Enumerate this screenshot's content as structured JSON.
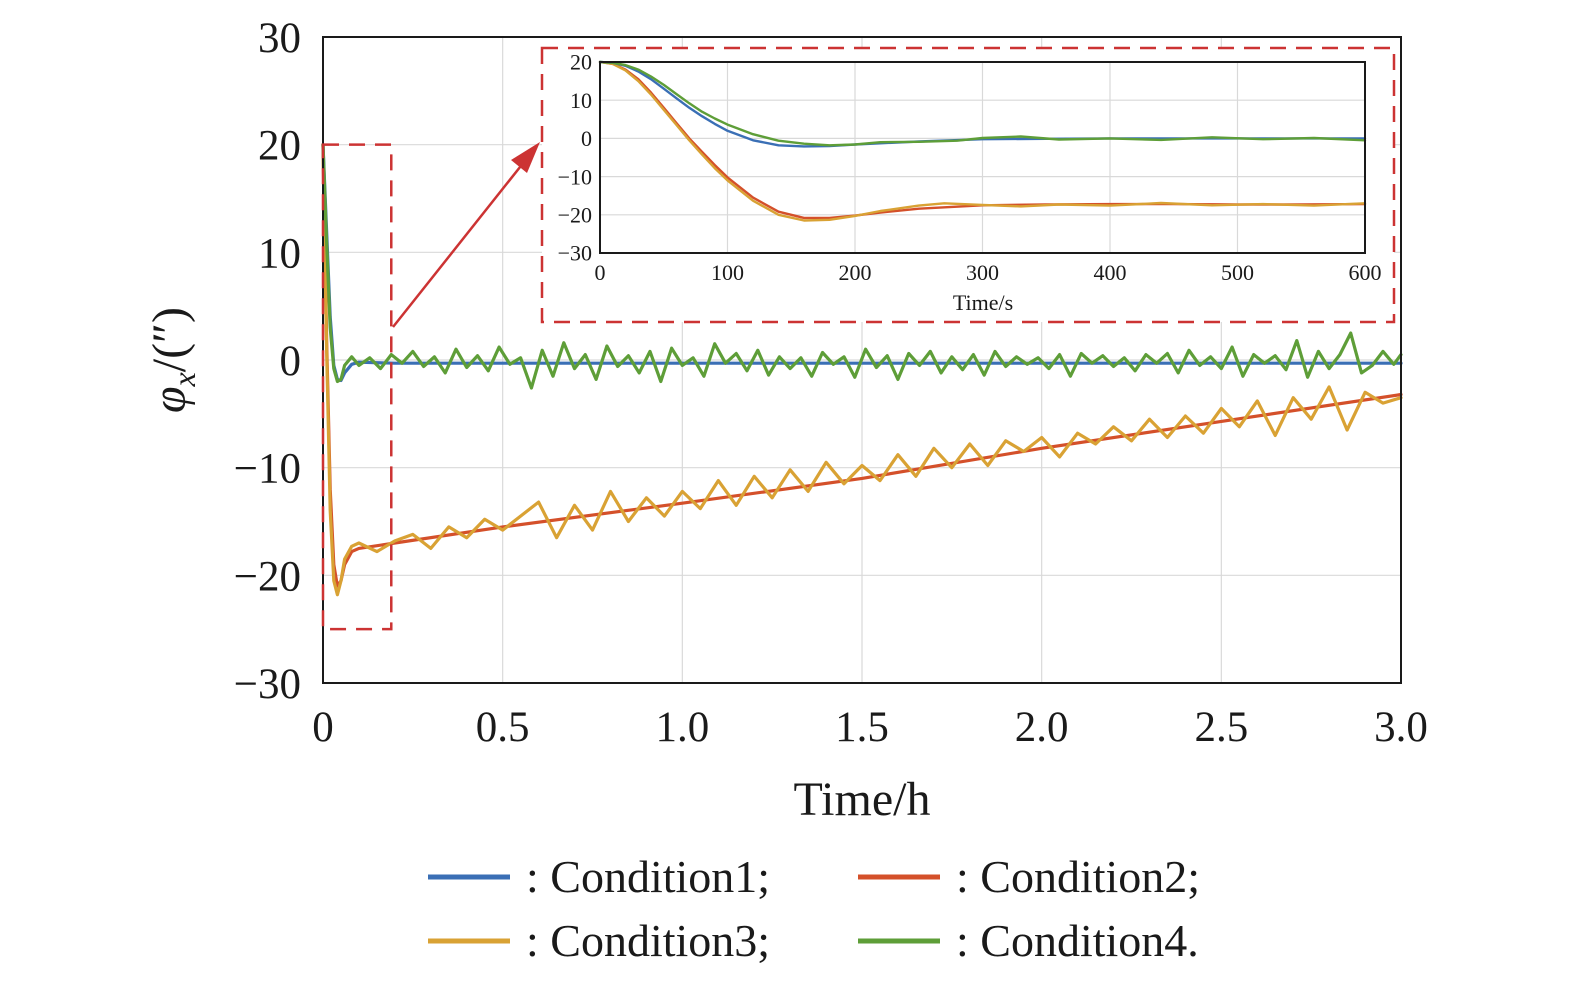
{
  "colors": {
    "condition1": "#3a6fb5",
    "condition2": "#d4502a",
    "condition3": "#d9a234",
    "condition4": "#5e9e38",
    "zoom_box": "#cc3333",
    "grid": "#d9d9d9",
    "axis": "#1a1a1a"
  },
  "chart_data": [
    {
      "type": "line",
      "title": "",
      "xlabel": "Time/h",
      "ylabel_symbol": "φ",
      "ylabel_subscript": "x",
      "ylabel_unit": "/(″)",
      "xlim": [
        0,
        3.0
      ],
      "ylim": [
        -30,
        30
      ],
      "xticks": [
        "0",
        "0.5",
        "1.0",
        "1.5",
        "2.0",
        "2.5",
        "3.0"
      ],
      "yticks": [
        "30",
        "20",
        "10",
        "0",
        "−10",
        "−20",
        "−30"
      ],
      "grid": true,
      "zoom_region": {
        "x": [
          0,
          0.19
        ],
        "y": [
          -25,
          20
        ]
      },
      "legend": {
        "position": "bottom",
        "entries": [
          ": Condition1;",
          ": Condition2;",
          ": Condition3;",
          ": Condition4."
        ]
      },
      "series": [
        {
          "name": "Condition1",
          "x": [
            0,
            0.01,
            0.02,
            0.03,
            0.04,
            0.05,
            0.06,
            0.08,
            0.1,
            0.2,
            0.5,
            1.0,
            1.5,
            2.0,
            2.5,
            3.0
          ],
          "values": [
            20,
            12,
            4,
            -0.5,
            -1.8,
            -1.9,
            -1.2,
            -0.4,
            -0.2,
            -0.3,
            -0.3,
            -0.3,
            -0.3,
            -0.3,
            -0.3,
            -0.3
          ]
        },
        {
          "name": "Condition2",
          "x": [
            0,
            0.01,
            0.02,
            0.03,
            0.04,
            0.05,
            0.06,
            0.08,
            0.1,
            0.2,
            0.5,
            1.0,
            1.5,
            2.0,
            2.5,
            3.0
          ],
          "values": [
            20,
            2,
            -12,
            -19,
            -21,
            -20.5,
            -19,
            -17.8,
            -17.5,
            -17,
            -15.5,
            -13.3,
            -11,
            -8.2,
            -5.7,
            -3.2
          ]
        },
        {
          "name": "Condition3",
          "x": [
            0,
            0.01,
            0.02,
            0.03,
            0.04,
            0.05,
            0.06,
            0.08,
            0.1,
            0.15,
            0.2,
            0.25,
            0.3,
            0.35,
            0.4,
            0.45,
            0.5,
            0.55,
            0.6,
            0.65,
            0.7,
            0.75,
            0.8,
            0.85,
            0.9,
            0.95,
            1.0,
            1.05,
            1.1,
            1.15,
            1.2,
            1.25,
            1.3,
            1.35,
            1.4,
            1.45,
            1.5,
            1.55,
            1.6,
            1.65,
            1.7,
            1.75,
            1.8,
            1.85,
            1.9,
            1.95,
            2.0,
            2.05,
            2.1,
            2.15,
            2.2,
            2.25,
            2.3,
            2.35,
            2.4,
            2.45,
            2.5,
            2.55,
            2.6,
            2.65,
            2.7,
            2.75,
            2.8,
            2.85,
            2.9,
            2.95,
            3.0
          ],
          "values": [
            20,
            1,
            -14,
            -20.5,
            -21.8,
            -20.5,
            -18.5,
            -17.3,
            -17,
            -17.8,
            -16.8,
            -16.2,
            -17.5,
            -15.5,
            -16.5,
            -14.8,
            -15.8,
            -14.5,
            -13.2,
            -16.5,
            -13.5,
            -15.8,
            -12.2,
            -15,
            -12.8,
            -14.5,
            -12.2,
            -13.8,
            -11.2,
            -13.5,
            -10.8,
            -12.8,
            -10.2,
            -12.2,
            -9.5,
            -11.5,
            -9.8,
            -11.2,
            -8.8,
            -10.8,
            -8.2,
            -10,
            -7.8,
            -9.8,
            -7.5,
            -8.5,
            -7.2,
            -9,
            -6.8,
            -7.8,
            -6.2,
            -7.5,
            -5.5,
            -7.2,
            -5.2,
            -6.8,
            -4.5,
            -6.2,
            -3.8,
            -7,
            -3.5,
            -5.5,
            -2.5,
            -6.5,
            -3,
            -4,
            -3.5
          ]
        },
        {
          "name": "Condition4",
          "x": [
            0,
            0.01,
            0.02,
            0.03,
            0.04,
            0.05,
            0.06,
            0.08,
            0.1,
            0.13,
            0.16,
            0.19,
            0.22,
            0.25,
            0.28,
            0.31,
            0.34,
            0.37,
            0.4,
            0.43,
            0.46,
            0.49,
            0.52,
            0.55,
            0.58,
            0.61,
            0.64,
            0.67,
            0.7,
            0.73,
            0.76,
            0.79,
            0.82,
            0.85,
            0.88,
            0.91,
            0.94,
            0.97,
            1.0,
            1.03,
            1.06,
            1.09,
            1.12,
            1.15,
            1.18,
            1.21,
            1.24,
            1.27,
            1.3,
            1.33,
            1.36,
            1.39,
            1.42,
            1.45,
            1.48,
            1.51,
            1.54,
            1.57,
            1.6,
            1.63,
            1.66,
            1.69,
            1.72,
            1.75,
            1.78,
            1.81,
            1.84,
            1.87,
            1.9,
            1.93,
            1.96,
            1.99,
            2.02,
            2.05,
            2.08,
            2.11,
            2.14,
            2.17,
            2.2,
            2.23,
            2.26,
            2.29,
            2.32,
            2.35,
            2.38,
            2.41,
            2.44,
            2.47,
            2.5,
            2.53,
            2.56,
            2.59,
            2.62,
            2.65,
            2.68,
            2.71,
            2.74,
            2.77,
            2.8,
            2.83,
            2.86,
            2.89,
            2.92,
            2.95,
            2.98,
            3.0
          ],
          "values": [
            20,
            11,
            3,
            -0.8,
            -2,
            -1.8,
            -0.5,
            0.3,
            -0.5,
            0.2,
            -0.8,
            0.5,
            -0.3,
            0.8,
            -0.6,
            0.3,
            -1.2,
            1.0,
            -0.7,
            0.4,
            -1.0,
            1.2,
            -0.4,
            0.2,
            -2.6,
            0.9,
            -1.5,
            1.6,
            -0.8,
            0.5,
            -1.8,
            1.3,
            -0.6,
            0.4,
            -1.2,
            0.8,
            -2.0,
            1.1,
            -0.5,
            0.2,
            -1.5,
            1.5,
            -0.3,
            0.6,
            -1.0,
            0.9,
            -1.4,
            0.3,
            -0.8,
            0.2,
            -1.5,
            0.7,
            -0.4,
            0.3,
            -1.6,
            1.0,
            -0.7,
            0.4,
            -1.8,
            0.6,
            -0.5,
            0.8,
            -1.2,
            0.3,
            -0.9,
            0.5,
            -1.4,
            0.8,
            -0.6,
            0.3,
            -0.4,
            0.2,
            -0.8,
            0.5,
            -1.5,
            0.6,
            -0.3,
            0.4,
            -0.6,
            0.2,
            -1.0,
            0.5,
            -0.3,
            0.6,
            -1.2,
            0.9,
            -0.5,
            0.3,
            -0.8,
            1.2,
            -1.5,
            0.5,
            -0.3,
            0.4,
            -0.9,
            1.8,
            -1.6,
            0.8,
            -0.8,
            0.5,
            2.5,
            -1.2,
            -0.5,
            0.8,
            -0.4,
            0.5
          ]
        }
      ]
    },
    {
      "type": "line",
      "title": "",
      "xlabel": "Time/s",
      "ylabel": "",
      "xlim": [
        0,
        600
      ],
      "ylim": [
        -30,
        20
      ],
      "xticks": [
        "0",
        "100",
        "200",
        "300",
        "400",
        "500",
        "600"
      ],
      "yticks": [
        "20",
        "10",
        "0",
        "−10",
        "−20",
        "−30"
      ],
      "grid": true,
      "series": [
        {
          "name": "Condition1",
          "x": [
            0,
            10,
            20,
            30,
            40,
            50,
            60,
            70,
            80,
            90,
            100,
            120,
            140,
            160,
            180,
            200,
            250,
            300,
            350,
            400,
            450,
            500,
            550,
            600
          ],
          "values": [
            20,
            19.8,
            19,
            17.5,
            15.5,
            13,
            10.5,
            8,
            5.8,
            3.8,
            2,
            -0.5,
            -1.8,
            -2.1,
            -2.0,
            -1.6,
            -0.8,
            -0.2,
            -0.1,
            0,
            0,
            0,
            0,
            0
          ]
        },
        {
          "name": "Condition2",
          "x": [
            0,
            10,
            20,
            30,
            40,
            50,
            60,
            70,
            80,
            90,
            100,
            120,
            140,
            160,
            180,
            200,
            220,
            250,
            300,
            350,
            400,
            450,
            500,
            550,
            600
          ],
          "values": [
            20,
            19.5,
            18,
            15.5,
            12,
            8,
            4,
            0,
            -3.5,
            -7,
            -10.2,
            -15.5,
            -19.2,
            -20.8,
            -20.8,
            -20.2,
            -19.4,
            -18.4,
            -17.5,
            -17.3,
            -17.2,
            -17.2,
            -17.3,
            -17.3,
            -17.2
          ]
        },
        {
          "name": "Condition3",
          "x": [
            0,
            10,
            20,
            30,
            40,
            50,
            60,
            70,
            80,
            90,
            100,
            120,
            140,
            160,
            180,
            200,
            220,
            250,
            270,
            300,
            330,
            360,
            400,
            440,
            480,
            520,
            560,
            600
          ],
          "values": [
            20,
            19.5,
            17.8,
            15,
            11.5,
            7.5,
            3.5,
            -0.5,
            -4.2,
            -7.8,
            -11,
            -16.3,
            -20,
            -21.5,
            -21.3,
            -20.3,
            -19,
            -17.6,
            -17.0,
            -17.4,
            -17.8,
            -17.3,
            -17.6,
            -16.9,
            -17.5,
            -17.2,
            -17.6,
            -17.0
          ]
        },
        {
          "name": "Condition4",
          "x": [
            0,
            10,
            20,
            30,
            40,
            50,
            60,
            70,
            80,
            90,
            100,
            120,
            140,
            160,
            180,
            200,
            220,
            250,
            280,
            300,
            330,
            360,
            400,
            440,
            480,
            520,
            560,
            600
          ],
          "values": [
            20,
            19.8,
            19.2,
            18,
            16.2,
            14,
            11.6,
            9.2,
            7,
            5.2,
            3.6,
            1.1,
            -0.6,
            -1.4,
            -1.8,
            -1.6,
            -1.0,
            -0.9,
            -0.6,
            0.1,
            0.5,
            -0.3,
            0,
            -0.4,
            0.3,
            -0.2,
            0.1,
            -0.5
          ]
        }
      ]
    }
  ]
}
